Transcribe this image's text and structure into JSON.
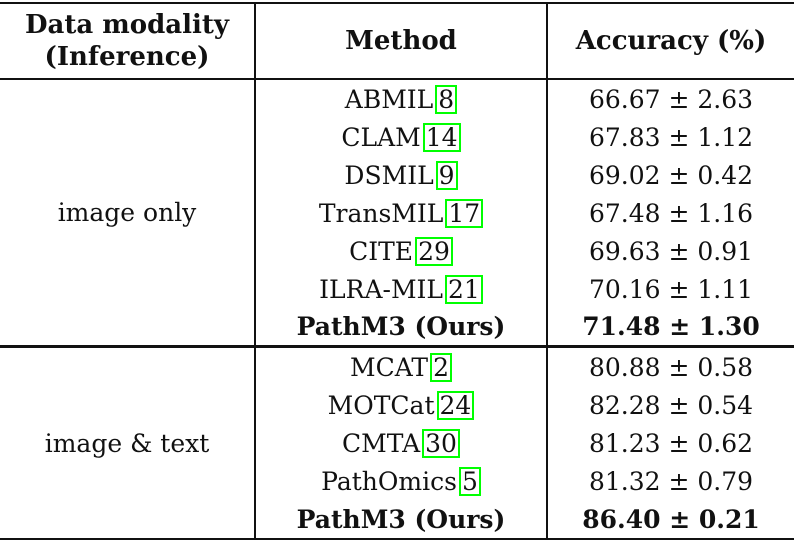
{
  "header": {
    "col1_line1": "Data modality",
    "col1_line2": "(Inference)",
    "col2": "Method",
    "col3": "Accuracy (%)"
  },
  "groups": [
    {
      "modality": "image only",
      "rows": [
        {
          "method": "ABMIL",
          "cite": "8",
          "accuracy": "66.67 ± 2.63"
        },
        {
          "method": "CLAM",
          "cite": "14",
          "accuracy": "67.83 ± 1.12"
        },
        {
          "method": "DSMIL",
          "cite": "9",
          "accuracy": "69.02 ± 0.42"
        },
        {
          "method": "TransMIL",
          "cite": "17",
          "accuracy": "67.48 ± 1.16"
        },
        {
          "method": "CITE",
          "cite": "29",
          "accuracy": "69.63 ± 0.91"
        },
        {
          "method": "ILRA-MIL",
          "cite": "21",
          "accuracy": "70.16 ± 1.11"
        },
        {
          "method": "PathM3 (Ours)",
          "accuracy": "71.48 ± 1.30"
        }
      ]
    },
    {
      "modality": "image & text",
      "rows": [
        {
          "method": "MCAT",
          "cite": "2",
          "accuracy": "80.88 ± 0.58"
        },
        {
          "method": "MOTCat",
          "cite": "24",
          "accuracy": "82.28 ± 0.54"
        },
        {
          "method": "CMTA",
          "cite": "30",
          "accuracy": "81.23 ± 0.62"
        },
        {
          "method": "PathOmics",
          "cite": "5",
          "accuracy": "81.32 ± 0.79"
        },
        {
          "method": "PathM3 (Ours)",
          "accuracy": "86.40 ± 0.21"
        }
      ]
    }
  ]
}
